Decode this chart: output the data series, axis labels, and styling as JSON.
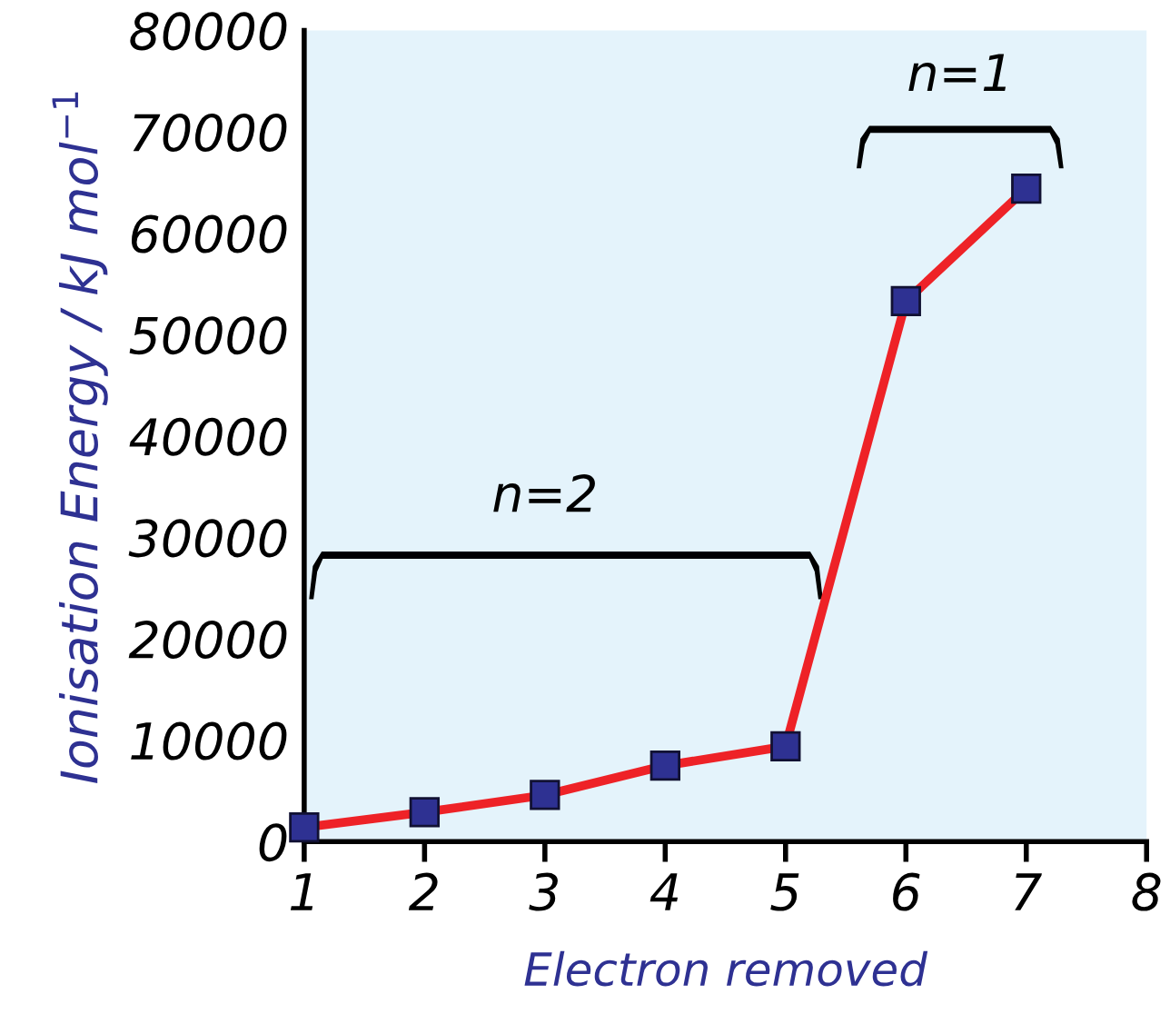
{
  "chart_data": {
    "type": "line",
    "xlabel": "Electron removed",
    "ylabel": "Ionisation Energy / kJ mol$^{−1}$",
    "x": [
      1,
      2,
      3,
      4,
      5,
      6,
      7
    ],
    "series": [
      {
        "color": "#ee2227",
        "values": [
          1400,
          2900,
          4600,
          7500,
          9400,
          53300,
          64400
        ]
      }
    ],
    "xlim": [
      1,
      8
    ],
    "xticks": [
      1,
      2,
      3,
      4,
      5,
      6,
      7,
      8
    ],
    "ylim": [
      0,
      80000
    ],
    "yticks": [
      0,
      10000,
      20000,
      30000,
      40000,
      50000,
      60000,
      70000,
      80000
    ],
    "marker": "square",
    "line_style": "solid",
    "grid": false,
    "legend": false,
    "annotations": [
      "n=2",
      "n=1"
    ]
  }
}
